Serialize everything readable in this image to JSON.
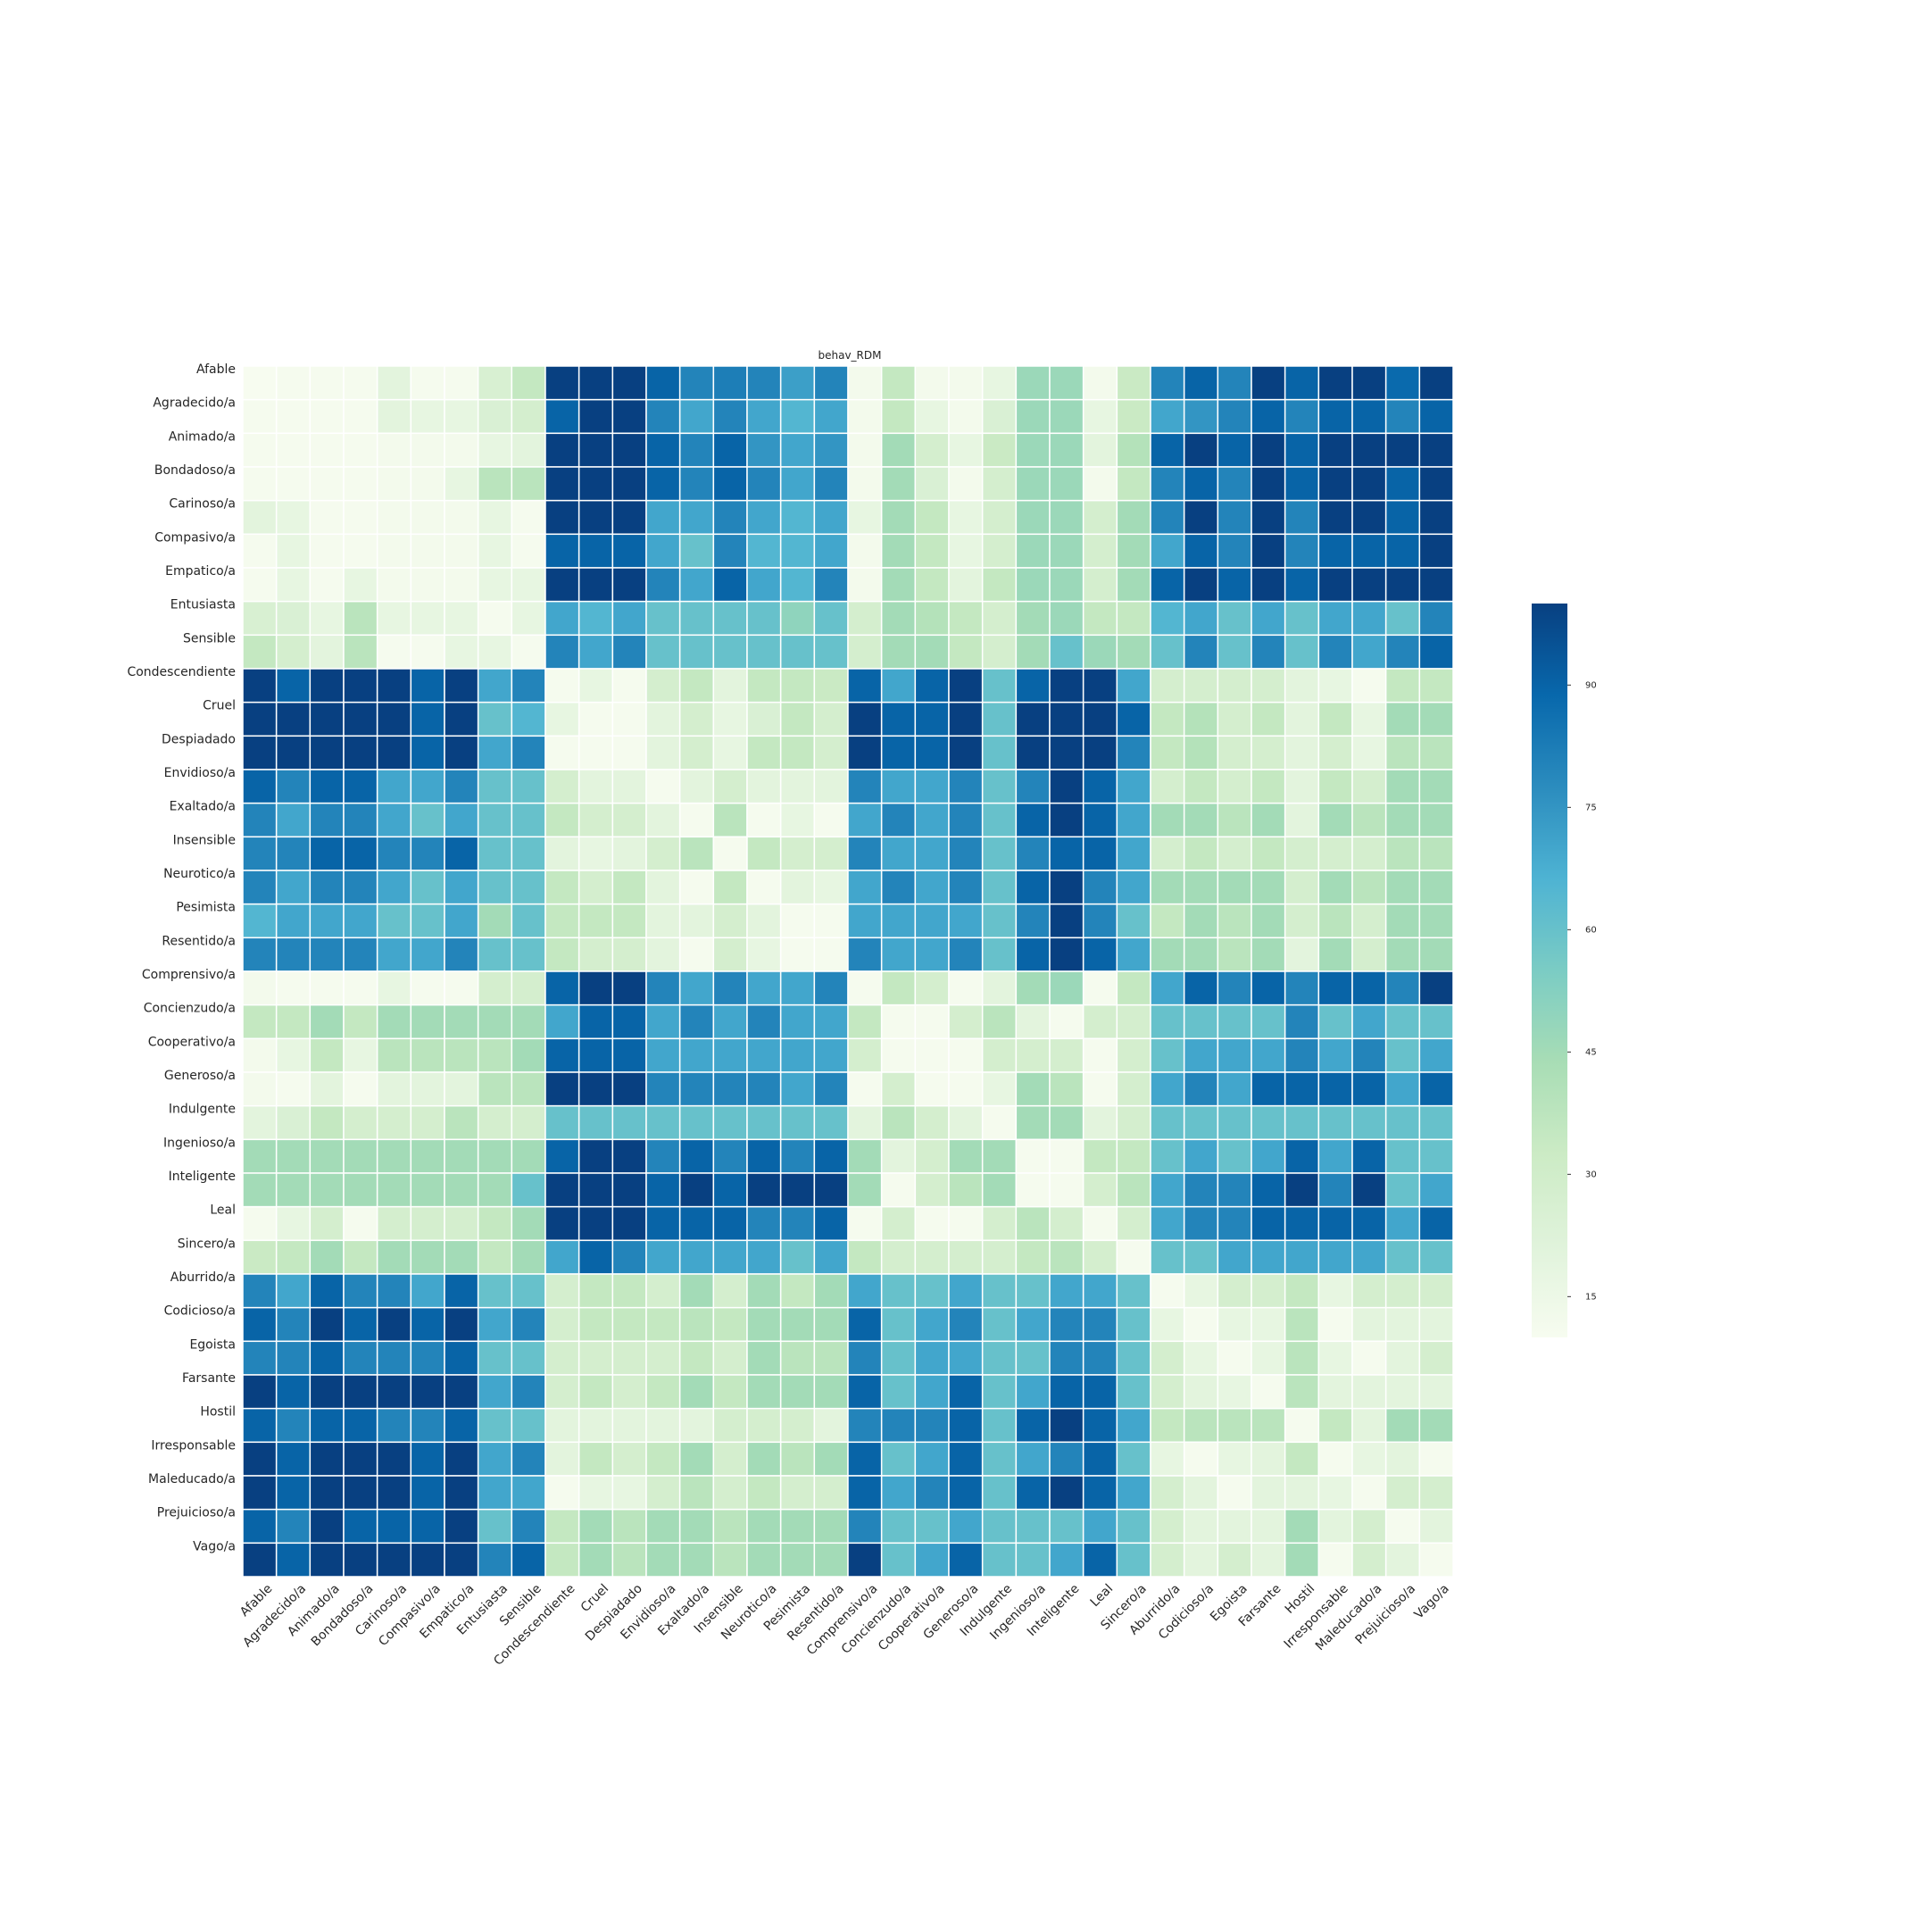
{
  "chart_data": {
    "type": "heatmap",
    "title": "behav_RDM",
    "xlabel": "",
    "ylabel": "",
    "row_labels": [
      "Afable",
      "Agradecido/a",
      "Animado/a",
      "Bondadoso/a",
      "Carinoso/a",
      "Compasivo/a",
      "Empatico/a",
      "Entusiasta",
      "Sensible",
      "Condescendiente",
      "Cruel",
      "Despiadado",
      "Envidioso/a",
      "Exaltado/a",
      "Insensible",
      "Neurotico/a",
      "Pesimista",
      "Resentido/a",
      "Comprensivo/a",
      "Concienzudo/a",
      "Cooperativo/a",
      "Generoso/a",
      "Indulgente",
      "Ingenioso/a",
      "Inteligente",
      "Leal",
      "Sincero/a",
      "Aburrido/a",
      "Codicioso/a",
      "Egoista",
      "Farsante",
      "Hostil",
      "Irresponsable",
      "Maleducado/a",
      "Prejuicioso/a",
      "Vago/a"
    ],
    "col_labels": [
      "Afable",
      "Agradecido/a",
      "Animado/a",
      "Bondadoso/a",
      "Carinoso/a",
      "Compasivo/a",
      "Empatico/a",
      "Entusiasta",
      "Sensible",
      "Condescendiente",
      "Cruel",
      "Despiadado",
      "Envidioso/a",
      "Exaltado/a",
      "Insensible",
      "Neurotico/a",
      "Pesimista",
      "Resentido/a",
      "Comprensivo/a",
      "Concienzudo/a",
      "Cooperativo/a",
      "Generoso/a",
      "Indulgente",
      "Ingenioso/a",
      "Inteligente",
      "Leal",
      "Sincero/a",
      "Aburrido/a",
      "Codicioso/a",
      "Egoista",
      "Farsante",
      "Hostil",
      "Irresponsable",
      "Maleducado/a",
      "Prejuicioso/a",
      "Vago/a"
    ],
    "colorbar": {
      "min": 10,
      "max": 100,
      "ticks": [
        "15",
        "30",
        "45",
        "60",
        "75",
        "90"
      ],
      "tick_values": [
        15,
        30,
        45,
        60,
        75,
        90
      ],
      "colormap": [
        "#f7fcf0",
        "#e0f3db",
        "#ccebc5",
        "#a8ddb5",
        "#7bccc4",
        "#4eb3d3",
        "#2b8cbe",
        "#0868ac",
        "#084081"
      ]
    },
    "grid": false,
    "values": [
      [
        10,
        11,
        11,
        11,
        20,
        11,
        11,
        26,
        35,
        100,
        100,
        100,
        90,
        80,
        82,
        80,
        72,
        80,
        12,
        35,
        12,
        12,
        18,
        47,
        47,
        12,
        33,
        80,
        90,
        80,
        100,
        90,
        100,
        100,
        88,
        100
      ],
      [
        11,
        11,
        11,
        11,
        20,
        18,
        18,
        25,
        28,
        90,
        100,
        100,
        80,
        70,
        80,
        70,
        65,
        70,
        12,
        35,
        18,
        12,
        25,
        47,
        47,
        18,
        33,
        70,
        75,
        80,
        90,
        80,
        90,
        90,
        80,
        90
      ],
      [
        11,
        11,
        11,
        11,
        12,
        12,
        12,
        18,
        20,
        100,
        100,
        100,
        90,
        80,
        90,
        75,
        70,
        75,
        12,
        45,
        28,
        18,
        33,
        47,
        47,
        20,
        40,
        90,
        100,
        90,
        100,
        90,
        100,
        100,
        100,
        100
      ],
      [
        11,
        11,
        11,
        11,
        12,
        12,
        18,
        38,
        38,
        100,
        100,
        100,
        90,
        80,
        90,
        80,
        70,
        80,
        12,
        45,
        25,
        12,
        28,
        47,
        47,
        12,
        35,
        80,
        90,
        80,
        100,
        90,
        100,
        100,
        90,
        100
      ],
      [
        20,
        18,
        11,
        11,
        12,
        12,
        12,
        18,
        11,
        100,
        100,
        100,
        70,
        70,
        80,
        70,
        65,
        70,
        18,
        45,
        35,
        18,
        28,
        47,
        47,
        28,
        45,
        80,
        100,
        80,
        100,
        80,
        100,
        100,
        90,
        100
      ],
      [
        11,
        18,
        11,
        11,
        12,
        12,
        12,
        18,
        11,
        90,
        90,
        90,
        70,
        60,
        80,
        65,
        65,
        70,
        12,
        45,
        35,
        18,
        28,
        47,
        47,
        28,
        45,
        70,
        90,
        80,
        100,
        80,
        90,
        90,
        90,
        100
      ],
      [
        11,
        18,
        11,
        18,
        12,
        12,
        12,
        18,
        18,
        100,
        100,
        100,
        80,
        70,
        90,
        70,
        65,
        80,
        12,
        45,
        35,
        20,
        35,
        47,
        47,
        28,
        45,
        90,
        100,
        90,
        100,
        90,
        100,
        100,
        100,
        100
      ],
      [
        26,
        25,
        18,
        38,
        18,
        18,
        18,
        11,
        18,
        70,
        65,
        70,
        60,
        60,
        60,
        60,
        50,
        60,
        28,
        45,
        40,
        35,
        28,
        45,
        47,
        35,
        35,
        65,
        70,
        60,
        70,
        60,
        70,
        70,
        60,
        80
      ],
      [
        35,
        28,
        20,
        38,
        11,
        11,
        18,
        18,
        11,
        80,
        70,
        80,
        60,
        60,
        60,
        60,
        60,
        60,
        28,
        45,
        45,
        35,
        28,
        45,
        60,
        47,
        45,
        60,
        80,
        60,
        80,
        60,
        80,
        70,
        80,
        90
      ],
      [
        100,
        90,
        100,
        100,
        100,
        90,
        100,
        70,
        80,
        11,
        18,
        11,
        28,
        35,
        20,
        35,
        35,
        33,
        90,
        70,
        90,
        100,
        60,
        90,
        100,
        100,
        70,
        28,
        28,
        28,
        28,
        20,
        18,
        11,
        35,
        35
      ],
      [
        100,
        100,
        100,
        100,
        100,
        90,
        100,
        60,
        65,
        18,
        11,
        11,
        20,
        28,
        18,
        25,
        35,
        28,
        100,
        90,
        90,
        100,
        60,
        100,
        100,
        100,
        90,
        35,
        40,
        28,
        35,
        20,
        35,
        18,
        45,
        45
      ],
      [
        100,
        100,
        100,
        100,
        100,
        90,
        100,
        70,
        80,
        11,
        11,
        11,
        20,
        28,
        18,
        35,
        35,
        28,
        100,
        90,
        90,
        100,
        60,
        100,
        100,
        100,
        80,
        35,
        40,
        28,
        28,
        20,
        28,
        18,
        38,
        38
      ],
      [
        90,
        80,
        90,
        90,
        70,
        70,
        80,
        60,
        60,
        28,
        20,
        20,
        11,
        20,
        28,
        20,
        20,
        20,
        80,
        70,
        70,
        80,
        60,
        80,
        100,
        90,
        70,
        28,
        35,
        28,
        35,
        20,
        35,
        28,
        45,
        45
      ],
      [
        80,
        70,
        80,
        80,
        70,
        60,
        70,
        60,
        60,
        35,
        28,
        28,
        20,
        11,
        38,
        11,
        18,
        11,
        70,
        80,
        70,
        80,
        60,
        90,
        100,
        90,
        70,
        45,
        45,
        38,
        45,
        20,
        45,
        38,
        45,
        45
      ],
      [
        80,
        80,
        90,
        90,
        80,
        80,
        90,
        60,
        60,
        20,
        18,
        20,
        28,
        38,
        11,
        35,
        28,
        28,
        80,
        70,
        70,
        80,
        60,
        80,
        90,
        90,
        70,
        28,
        35,
        28,
        35,
        28,
        28,
        28,
        38,
        38
      ],
      [
        80,
        70,
        80,
        80,
        70,
        60,
        70,
        60,
        60,
        35,
        28,
        35,
        20,
        11,
        35,
        11,
        20,
        18,
        70,
        80,
        70,
        80,
        60,
        90,
        100,
        80,
        70,
        45,
        45,
        45,
        45,
        28,
        45,
        38,
        45,
        45
      ],
      [
        65,
        70,
        70,
        70,
        60,
        60,
        70,
        45,
        60,
        35,
        35,
        35,
        20,
        20,
        28,
        20,
        11,
        11,
        70,
        70,
        70,
        70,
        60,
        80,
        100,
        80,
        60,
        35,
        45,
        38,
        45,
        28,
        38,
        28,
        45,
        45
      ],
      [
        80,
        80,
        80,
        80,
        70,
        70,
        80,
        60,
        60,
        35,
        28,
        28,
        20,
        11,
        28,
        18,
        11,
        11,
        80,
        70,
        70,
        80,
        60,
        90,
        100,
        90,
        70,
        45,
        45,
        38,
        45,
        20,
        45,
        28,
        45,
        45
      ],
      [
        12,
        11,
        11,
        11,
        18,
        11,
        11,
        28,
        28,
        90,
        100,
        100,
        80,
        70,
        80,
        70,
        70,
        80,
        11,
        35,
        28,
        11,
        20,
        45,
        47,
        11,
        35,
        70,
        90,
        80,
        90,
        80,
        90,
        90,
        80,
        100
      ],
      [
        35,
        35,
        45,
        35,
        45,
        45,
        45,
        45,
        45,
        70,
        90,
        90,
        70,
        80,
        70,
        80,
        70,
        70,
        35,
        11,
        11,
        28,
        38,
        20,
        11,
        28,
        28,
        60,
        60,
        60,
        60,
        80,
        60,
        70,
        60,
        60
      ],
      [
        12,
        18,
        35,
        18,
        38,
        38,
        38,
        38,
        45,
        90,
        90,
        90,
        70,
        70,
        70,
        70,
        70,
        70,
        28,
        11,
        11,
        11,
        28,
        28,
        28,
        11,
        28,
        60,
        70,
        70,
        70,
        80,
        70,
        80,
        60,
        70
      ],
      [
        12,
        11,
        20,
        11,
        20,
        20,
        20,
        38,
        38,
        100,
        100,
        100,
        80,
        80,
        80,
        80,
        70,
        80,
        11,
        28,
        11,
        11,
        18,
        45,
        38,
        11,
        28,
        70,
        80,
        70,
        90,
        90,
        90,
        90,
        70,
        90
      ],
      [
        20,
        25,
        35,
        28,
        28,
        28,
        38,
        28,
        28,
        60,
        60,
        60,
        60,
        60,
        60,
        60,
        60,
        60,
        20,
        38,
        28,
        20,
        11,
        45,
        45,
        20,
        28,
        60,
        60,
        60,
        60,
        60,
        60,
        60,
        60,
        60
      ],
      [
        45,
        45,
        45,
        45,
        45,
        45,
        45,
        45,
        45,
        90,
        100,
        100,
        80,
        90,
        80,
        90,
        80,
        90,
        45,
        20,
        28,
        45,
        45,
        11,
        11,
        35,
        35,
        60,
        70,
        60,
        70,
        90,
        70,
        90,
        60,
        60
      ],
      [
        45,
        45,
        45,
        45,
        45,
        45,
        45,
        45,
        60,
        100,
        100,
        100,
        90,
        100,
        90,
        100,
        100,
        100,
        45,
        11,
        28,
        38,
        45,
        11,
        11,
        28,
        38,
        70,
        80,
        80,
        90,
        100,
        80,
        100,
        60,
        70
      ],
      [
        11,
        18,
        28,
        11,
        28,
        28,
        28,
        35,
        45,
        100,
        100,
        100,
        90,
        90,
        90,
        80,
        80,
        90,
        11,
        28,
        11,
        11,
        28,
        38,
        28,
        11,
        28,
        70,
        80,
        80,
        90,
        90,
        90,
        90,
        70,
        90
      ],
      [
        33,
        35,
        45,
        35,
        45,
        45,
        45,
        35,
        45,
        70,
        90,
        80,
        70,
        70,
        70,
        70,
        60,
        70,
        35,
        28,
        28,
        28,
        28,
        35,
        38,
        28,
        11,
        60,
        60,
        70,
        70,
        70,
        70,
        70,
        60,
        60
      ],
      [
        80,
        70,
        90,
        80,
        80,
        70,
        90,
        60,
        60,
        28,
        35,
        35,
        28,
        45,
        28,
        45,
        35,
        45,
        70,
        60,
        60,
        70,
        60,
        60,
        70,
        70,
        60,
        11,
        18,
        28,
        28,
        35,
        18,
        28,
        28,
        28
      ],
      [
        90,
        80,
        100,
        90,
        100,
        90,
        100,
        70,
        80,
        28,
        35,
        35,
        35,
        38,
        35,
        45,
        45,
        45,
        90,
        60,
        70,
        80,
        60,
        70,
        80,
        80,
        60,
        18,
        11,
        18,
        18,
        38,
        11,
        20,
        20,
        20
      ],
      [
        80,
        80,
        90,
        80,
        80,
        80,
        90,
        60,
        60,
        28,
        28,
        28,
        28,
        35,
        28,
        45,
        38,
        38,
        80,
        60,
        70,
        70,
        60,
        60,
        80,
        80,
        60,
        28,
        18,
        11,
        18,
        38,
        18,
        11,
        20,
        28
      ],
      [
        100,
        90,
        100,
        100,
        100,
        100,
        100,
        70,
        80,
        28,
        35,
        28,
        35,
        45,
        35,
        45,
        45,
        45,
        90,
        60,
        70,
        90,
        60,
        70,
        90,
        90,
        60,
        28,
        20,
        18,
        11,
        38,
        20,
        20,
        20,
        20
      ],
      [
        90,
        80,
        90,
        90,
        80,
        80,
        90,
        60,
        60,
        20,
        20,
        20,
        20,
        20,
        28,
        28,
        28,
        20,
        80,
        80,
        80,
        90,
        60,
        90,
        100,
        90,
        70,
        35,
        38,
        38,
        38,
        11,
        35,
        20,
        45,
        45
      ],
      [
        100,
        90,
        100,
        100,
        100,
        90,
        100,
        70,
        80,
        20,
        35,
        28,
        35,
        45,
        28,
        45,
        38,
        45,
        90,
        60,
        70,
        90,
        60,
        70,
        80,
        90,
        60,
        18,
        11,
        18,
        20,
        35,
        11,
        18,
        20,
        11
      ],
      [
        100,
        90,
        100,
        100,
        100,
        90,
        100,
        70,
        70,
        11,
        18,
        18,
        28,
        38,
        28,
        35,
        28,
        28,
        90,
        70,
        80,
        90,
        60,
        90,
        100,
        90,
        70,
        28,
        20,
        11,
        20,
        20,
        18,
        11,
        28,
        28
      ],
      [
        90,
        80,
        100,
        90,
        90,
        90,
        100,
        60,
        80,
        35,
        45,
        38,
        45,
        45,
        38,
        45,
        45,
        45,
        80,
        60,
        60,
        70,
        60,
        60,
        60,
        70,
        60,
        28,
        20,
        20,
        20,
        45,
        20,
        28,
        11,
        20
      ],
      [
        100,
        90,
        100,
        100,
        100,
        100,
        100,
        80,
        90,
        35,
        45,
        38,
        45,
        45,
        38,
        45,
        45,
        45,
        100,
        60,
        70,
        90,
        60,
        60,
        70,
        90,
        60,
        28,
        20,
        28,
        20,
        45,
        11,
        28,
        20,
        11
      ]
    ]
  }
}
